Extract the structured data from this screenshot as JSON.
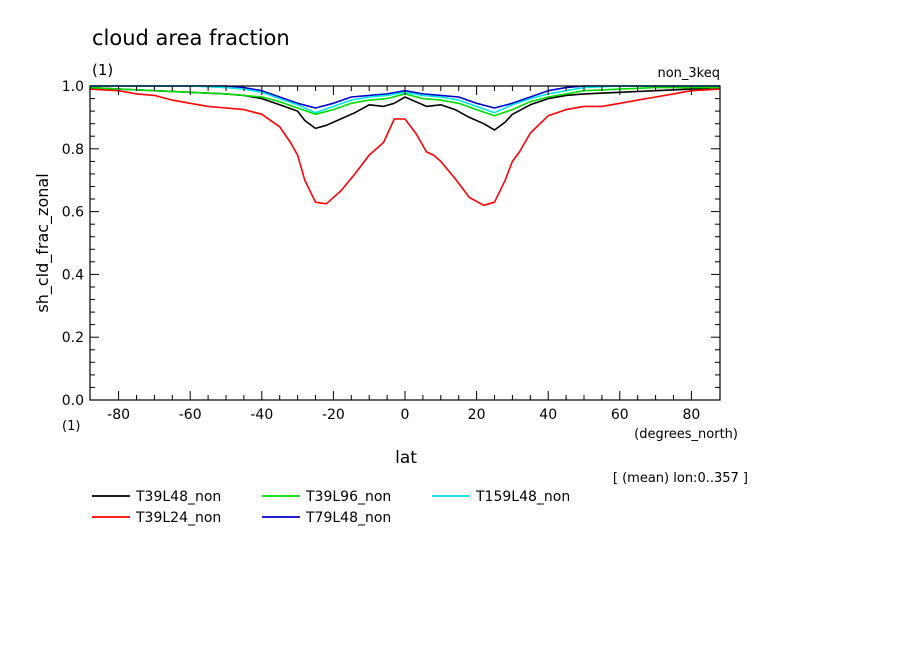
{
  "chart_data": {
    "type": "line",
    "title": "cloud area fraction",
    "units_label": "(1)",
    "x_units_label": "(1)",
    "experiment": "non_3keq",
    "xlabel": "lat",
    "x_units": "(degrees_north)",
    "ylabel": "sh_cld_frac_zonal",
    "mean_note": "[ (mean) lon:0..357 ]",
    "xlim": [
      -88,
      88
    ],
    "ylim": [
      0.0,
      1.0
    ],
    "x_ticks": [
      -80,
      -60,
      -40,
      -20,
      0,
      20,
      40,
      60,
      80
    ],
    "y_ticks": [
      0.0,
      0.2,
      0.4,
      0.6,
      0.8,
      1.0
    ],
    "x_tick_labels": [
      "-80",
      "-60",
      "-40",
      "-20",
      "0",
      "20",
      "40",
      "60",
      "80"
    ],
    "y_tick_labels": [
      "0.0",
      "0.2",
      "0.4",
      "0.6",
      "0.8",
      "1.0"
    ],
    "grid": false,
    "legend_position": "bottom",
    "series": [
      {
        "name": "T39L48_non",
        "color": "#000000",
        "x": [
          -88,
          -80,
          -70,
          -60,
          -50,
          -45,
          -40,
          -35,
          -30,
          -28,
          -25,
          -22,
          -18,
          -14,
          -10,
          -6,
          -3,
          0,
          3,
          6,
          10,
          14,
          18,
          22,
          25,
          28,
          30,
          35,
          40,
          45,
          50,
          60,
          70,
          80,
          88
        ],
        "y": [
          0.995,
          0.99,
          0.985,
          0.98,
          0.975,
          0.97,
          0.96,
          0.94,
          0.92,
          0.89,
          0.865,
          0.875,
          0.895,
          0.915,
          0.94,
          0.935,
          0.945,
          0.965,
          0.95,
          0.935,
          0.94,
          0.925,
          0.9,
          0.88,
          0.86,
          0.885,
          0.91,
          0.94,
          0.96,
          0.97,
          0.975,
          0.98,
          0.985,
          0.99,
          0.995
        ]
      },
      {
        "name": "T39L24_non",
        "color": "#ff0000",
        "x": [
          -88,
          -80,
          -75,
          -70,
          -65,
          -60,
          -55,
          -50,
          -45,
          -40,
          -35,
          -32,
          -30,
          -28,
          -25,
          -22,
          -18,
          -14,
          -10,
          -6,
          -3,
          0,
          3,
          6,
          8,
          10,
          14,
          18,
          22,
          25,
          28,
          30,
          32,
          35,
          40,
          45,
          50,
          55,
          60,
          65,
          70,
          75,
          80,
          88
        ],
        "y": [
          0.99,
          0.985,
          0.975,
          0.97,
          0.955,
          0.945,
          0.935,
          0.93,
          0.925,
          0.91,
          0.87,
          0.82,
          0.78,
          0.7,
          0.63,
          0.625,
          0.665,
          0.72,
          0.78,
          0.82,
          0.895,
          0.895,
          0.85,
          0.79,
          0.78,
          0.76,
          0.705,
          0.645,
          0.62,
          0.63,
          0.7,
          0.76,
          0.79,
          0.85,
          0.905,
          0.925,
          0.935,
          0.935,
          0.945,
          0.955,
          0.965,
          0.975,
          0.985,
          0.99
        ]
      },
      {
        "name": "T39L96_non",
        "color": "#00dd00",
        "x": [
          -88,
          -80,
          -70,
          -60,
          -50,
          -45,
          -40,
          -35,
          -30,
          -25,
          -20,
          -15,
          -10,
          -5,
          0,
          5,
          10,
          15,
          20,
          25,
          30,
          35,
          40,
          45,
          50,
          60,
          70,
          80,
          88
        ],
        "y": [
          0.995,
          0.99,
          0.985,
          0.98,
          0.975,
          0.97,
          0.965,
          0.95,
          0.93,
          0.91,
          0.925,
          0.945,
          0.955,
          0.96,
          0.975,
          0.96,
          0.955,
          0.945,
          0.925,
          0.905,
          0.925,
          0.95,
          0.965,
          0.975,
          0.985,
          0.99,
          0.995,
          0.995,
          0.995
        ]
      },
      {
        "name": "T79L48_non",
        "color": "#0000cc",
        "x": [
          -88,
          -80,
          -70,
          -60,
          -50,
          -45,
          -40,
          -35,
          -30,
          -25,
          -20,
          -15,
          -10,
          -5,
          0,
          5,
          10,
          15,
          20,
          25,
          30,
          35,
          40,
          45,
          50,
          60,
          70,
          80,
          88
        ],
        "y": [
          1.0,
          1.0,
          1.0,
          1.0,
          1.0,
          0.995,
          0.985,
          0.965,
          0.945,
          0.93,
          0.945,
          0.965,
          0.97,
          0.975,
          0.985,
          0.975,
          0.97,
          0.965,
          0.945,
          0.93,
          0.945,
          0.965,
          0.985,
          0.995,
          1.0,
          1.0,
          1.0,
          1.0,
          1.0
        ]
      },
      {
        "name": "T159L48_non",
        "color": "#00e5e5",
        "x": [
          -88,
          -80,
          -70,
          -60,
          -50,
          -45,
          -40,
          -35,
          -30,
          -25,
          -20,
          -15,
          -10,
          -5,
          0,
          5,
          10,
          15,
          20,
          25,
          30,
          35,
          40,
          45,
          50,
          60,
          70,
          80,
          88
        ],
        "y": [
          1.0,
          1.0,
          1.0,
          1.0,
          0.995,
          0.99,
          0.98,
          0.96,
          0.94,
          0.915,
          0.935,
          0.955,
          0.965,
          0.97,
          0.98,
          0.97,
          0.965,
          0.955,
          0.935,
          0.915,
          0.94,
          0.96,
          0.975,
          0.985,
          0.995,
          1.0,
          1.0,
          1.0,
          1.0
        ]
      }
    ]
  }
}
